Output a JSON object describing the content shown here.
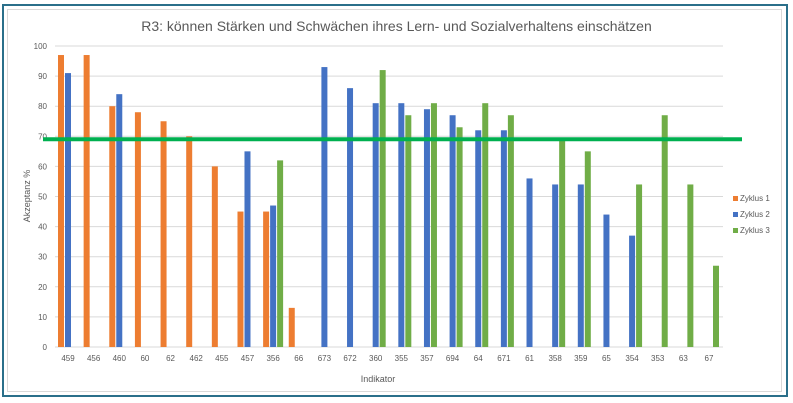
{
  "chart_data": {
    "type": "bar",
    "title": "R3: können Stärken und Schwächen ihres Lern- und Sozialverhaltens einschätzen",
    "xlabel": "Indikator",
    "ylabel": "Akzeptanz %",
    "ylim": [
      0,
      100
    ],
    "yticks": [
      0,
      10,
      20,
      30,
      40,
      50,
      60,
      70,
      80,
      90,
      100
    ],
    "grid": true,
    "legend_position": "right",
    "categories": [
      "459",
      "456",
      "460",
      "60",
      "62",
      "462",
      "455",
      "457",
      "356",
      "66",
      "673",
      "672",
      "360",
      "355",
      "357",
      "694",
      "64",
      "671",
      "61",
      "358",
      "359",
      "65",
      "354",
      "353",
      "63",
      "67"
    ],
    "series": [
      {
        "name": "Zyklus 1",
        "color": "#ed7d31",
        "values": [
          97,
          97,
          80,
          78,
          75,
          70,
          60,
          45,
          45,
          13,
          null,
          null,
          null,
          null,
          null,
          null,
          null,
          null,
          null,
          null,
          null,
          null,
          null,
          null,
          null,
          null
        ]
      },
      {
        "name": "Zyklus 2",
        "color": "#4472c4",
        "values": [
          91,
          null,
          84,
          null,
          null,
          null,
          null,
          65,
          47,
          null,
          93,
          86,
          81,
          81,
          79,
          77,
          72,
          72,
          56,
          54,
          54,
          44,
          37,
          null,
          null,
          null
        ]
      },
      {
        "name": "Zyklus 3",
        "color": "#70ad47",
        "values": [
          null,
          null,
          null,
          null,
          null,
          null,
          null,
          null,
          62,
          null,
          null,
          null,
          92,
          77,
          81,
          73,
          81,
          77,
          null,
          69,
          65,
          null,
          54,
          77,
          54,
          27
        ]
      }
    ],
    "reference_line": {
      "value": 69,
      "color": "#00b050"
    }
  }
}
